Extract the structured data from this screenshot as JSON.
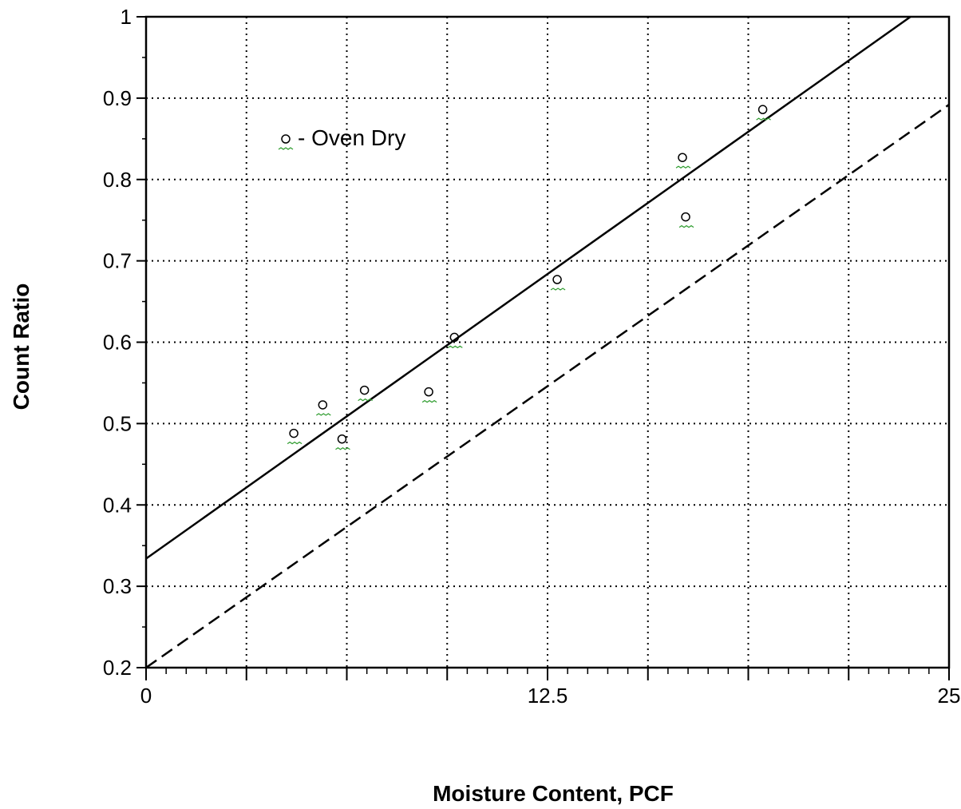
{
  "chart_data": {
    "type": "scatter",
    "title": "",
    "xlabel": "Moisture Content, PCF",
    "ylabel": "Count Ratio",
    "xlim": [
      0,
      25
    ],
    "ylim": [
      0.2,
      1
    ],
    "x_ticks": [
      {
        "value": 0,
        "label": "0"
      },
      {
        "value": 12.5,
        "label": "12.5"
      },
      {
        "value": 25,
        "label": "25"
      }
    ],
    "x_gridlines": [
      3.125,
      6.25,
      9.375,
      12.5,
      15.625,
      18.75,
      21.875
    ],
    "y_ticks": [
      {
        "value": 0.2,
        "label": "0.2"
      },
      {
        "value": 0.3,
        "label": "0.3"
      },
      {
        "value": 0.4,
        "label": "0.4"
      },
      {
        "value": 0.5,
        "label": "0.5"
      },
      {
        "value": 0.6,
        "label": "0.6"
      },
      {
        "value": 0.7,
        "label": "0.7"
      },
      {
        "value": 0.8,
        "label": "0.8"
      },
      {
        "value": 0.9,
        "label": "0.9"
      },
      {
        "value": 1,
        "label": "1"
      }
    ],
    "grid": true,
    "legend": {
      "label": "- Oven Dry",
      "position": "top-left"
    },
    "series": [
      {
        "name": "Oven Dry",
        "marker": "circle",
        "points": [
          {
            "x": 4.6,
            "y": 0.488
          },
          {
            "x": 5.5,
            "y": 0.523
          },
          {
            "x": 6.1,
            "y": 0.481
          },
          {
            "x": 6.8,
            "y": 0.541
          },
          {
            "x": 8.8,
            "y": 0.539
          },
          {
            "x": 9.6,
            "y": 0.606
          },
          {
            "x": 12.8,
            "y": 0.677
          },
          {
            "x": 16.7,
            "y": 0.827
          },
          {
            "x": 16.8,
            "y": 0.754
          },
          {
            "x": 19.2,
            "y": 0.886
          }
        ]
      }
    ],
    "lines": [
      {
        "style": "solid",
        "x": [
          0,
          23.8
        ],
        "y": [
          0.334,
          1.0
        ]
      },
      {
        "style": "dashed",
        "x": [
          0,
          25
        ],
        "y": [
          0.2,
          0.892
        ]
      }
    ]
  }
}
